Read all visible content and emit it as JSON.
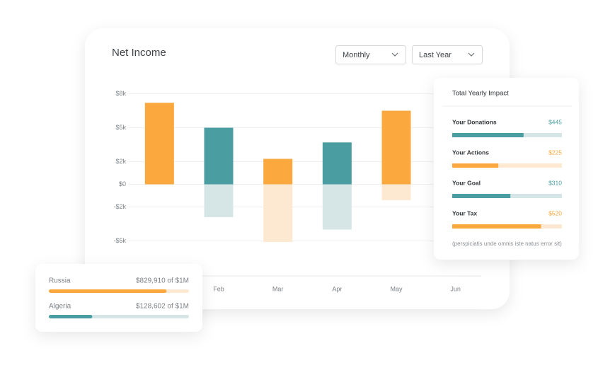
{
  "chart_data": {
    "type": "bar",
    "title": "Net Income",
    "categories": [
      null,
      "Feb",
      "Mar",
      "Apr",
      "May",
      "Jun"
    ],
    "series": [
      {
        "values": [
          7200,
          5000,
          2250,
          3700,
          6500,
          null
        ],
        "colors": [
          "#fba93e",
          "#4a9da0",
          "#fba93e",
          "#4a9da0",
          "#fba93e",
          "#4a9da0"
        ]
      },
      {
        "values": [
          null,
          -2900,
          -5100,
          -4000,
          -1400,
          null
        ],
        "colors": [
          "#fde9d2",
          "#d6e6e7",
          "#fde9d2",
          "#d6e6e7",
          "#fde9d2",
          "#d6e6e7"
        ]
      }
    ],
    "ylim": [
      -7800,
      8700
    ],
    "yticks": [
      {
        "value": 8000,
        "label": "$8k"
      },
      {
        "value": 5000,
        "label": "$5k"
      },
      {
        "value": 2000,
        "label": "$2k"
      },
      {
        "value": 0,
        "label": "$0"
      },
      {
        "value": -2000,
        "label": "-$2k"
      },
      {
        "value": -5000,
        "label": "-$5k"
      }
    ],
    "grid": true
  },
  "filters": [
    "Monthly",
    "Last Year"
  ],
  "impact": {
    "title": "Total Yearly Impact",
    "note": "(perspiciatis unde omnis iste natus error sit)",
    "items": [
      {
        "name": "Your Donations",
        "value": "$445",
        "progress": 65,
        "color": "#4a9da0",
        "track": "#d6e6e7"
      },
      {
        "name": "Your Actions",
        "value": "$225",
        "progress": 42,
        "color": "#fba93e",
        "track": "#fde9d2"
      },
      {
        "name": "Your Goal",
        "value": "$310",
        "progress": 53,
        "color": "#4a9da0",
        "track": "#d6e6e7"
      },
      {
        "name": "Your Tax",
        "value": "$520",
        "progress": 81,
        "color": "#fba93e",
        "track": "#fde9d2"
      }
    ]
  },
  "countries": [
    {
      "name": "Russia",
      "value": "$829,910 of $1M",
      "progress": 84,
      "color": "#fba93e",
      "track": "#fde9d2"
    },
    {
      "name": "Algeria",
      "value": "$128,602 of $1M",
      "progress": 31,
      "color": "#4a9da0",
      "track": "#d6e6e7"
    }
  ]
}
